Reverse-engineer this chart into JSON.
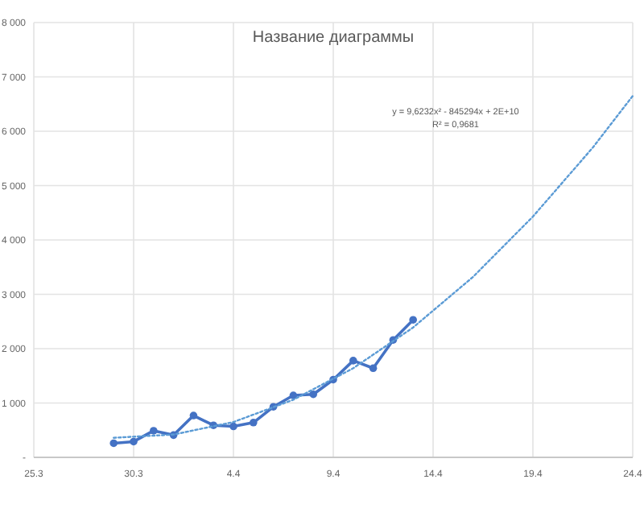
{
  "chart_data": {
    "type": "line",
    "title": "Название диаграммы",
    "annotations": [
      "y = 9,6232x² - 845294x + 2E+10",
      "R² = 0,9681"
    ],
    "xlim": [
      "--03-25",
      "--04-24"
    ],
    "xticks": [
      {
        "value": "--03-25",
        "label": "25.3"
      },
      {
        "value": "--03-30",
        "label": "30.3"
      },
      {
        "value": "--04-04",
        "label": "4.4"
      },
      {
        "value": "--04-09",
        "label": "9.4"
      },
      {
        "value": "--04-14",
        "label": "14.4"
      },
      {
        "value": "--04-19",
        "label": "19.4"
      },
      {
        "value": "--04-24",
        "label": "24.4"
      }
    ],
    "ylim": [
      0,
      8000
    ],
    "yticks": [
      {
        "value": 0,
        "label": "-"
      },
      {
        "value": 1000,
        "label": "1 000"
      },
      {
        "value": 2000,
        "label": "2 000"
      },
      {
        "value": 3000,
        "label": "3 000"
      },
      {
        "value": 4000,
        "label": "4 000"
      },
      {
        "value": 5000,
        "label": "5 000"
      },
      {
        "value": 6000,
        "label": "6 000"
      },
      {
        "value": 7000,
        "label": "7 000"
      },
      {
        "value": 8000,
        "label": "8 000"
      }
    ],
    "grid": true,
    "series": [
      {
        "color": "#4472c4",
        "marker": "circle",
        "line_style": "solid",
        "x": [
          "--03-29",
          "--03-30",
          "--03-31",
          "--04-01",
          "--04-02",
          "--04-03",
          "--04-04",
          "--04-05",
          "--04-06",
          "--04-07",
          "--04-08",
          "--04-09",
          "--04-10",
          "--04-11",
          "--04-12",
          "--04-13"
        ],
        "values": [
          260,
          290,
          490,
          410,
          770,
          590,
          570,
          640,
          930,
          1140,
          1160,
          1430,
          1780,
          1640,
          2160,
          2530
        ]
      },
      {
        "color": "#5b9bd5",
        "marker": "none",
        "line_style": "dotted",
        "x": [
          "--03-29",
          "--04-01",
          "--04-04",
          "--04-07",
          "--04-10",
          "--04-13",
          "--04-16",
          "--04-19",
          "--04-22",
          "--04-24"
        ],
        "values": [
          360,
          420,
          650,
          1060,
          1640,
          2390,
          3320,
          4430,
          5700,
          6650
        ]
      }
    ]
  }
}
